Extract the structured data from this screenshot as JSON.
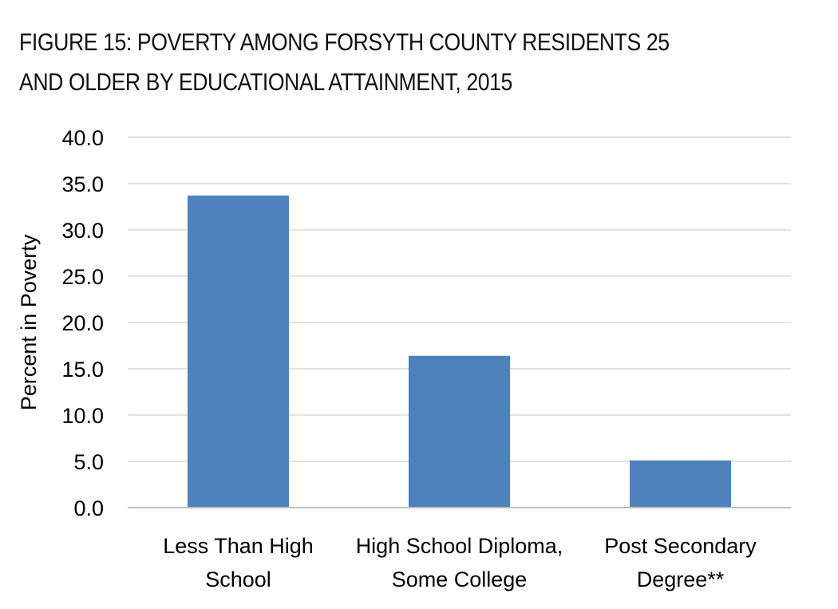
{
  "chart_data": {
    "type": "bar",
    "title_lines": [
      "FIGURE 15: POVERTY AMONG FORSYTH COUNTY RESIDENTS 25",
      "AND OLDER BY EDUCATIONAL ATTAINMENT, 2015"
    ],
    "ylabel": "Percent in Poverty",
    "xlabel": "",
    "ylim": [
      0,
      40
    ],
    "yticks": [
      "0.0",
      "5.0",
      "10.0",
      "15.0",
      "20.0",
      "25.0",
      "30.0",
      "35.0",
      "40.0"
    ],
    "grid": true,
    "bar_color": "#4f81bd",
    "categories": [
      [
        "Less Than High",
        "School"
      ],
      [
        "High School Diploma,",
        "Some College"
      ],
      [
        "Post Secondary",
        "Degree**"
      ]
    ],
    "values": [
      33.7,
      16.4,
      5.1
    ]
  }
}
